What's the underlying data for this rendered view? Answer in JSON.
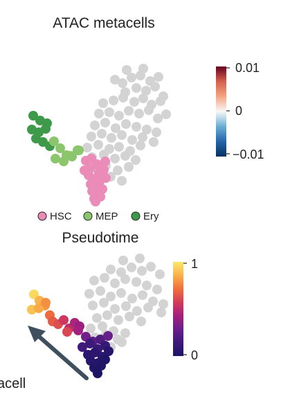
{
  "colors": {
    "hsc": "#ea8bb8",
    "mep": "#8bc66c",
    "ery": "#3d9a4a",
    "other": "#d3d3d3",
    "arrow": "#3e4f5e"
  },
  "chart_data": [
    {
      "type": "scatter",
      "title": "ATAC metacells",
      "colorbar": {
        "colors": [
          "#053061",
          "#2166ac",
          "#6aaed6",
          "#f7f7f7",
          "#f4a582",
          "#d6604d",
          "#67001f"
        ],
        "ticks": [
          "0.01",
          "0",
          "−0.01"
        ],
        "range": [
          -0.01,
          0.01
        ]
      },
      "legend": {
        "placement": "bottom",
        "entries": [
          {
            "label": "HSC",
            "color": "#ea8bb8"
          },
          {
            "label": "MEP",
            "color": "#8bc66c"
          },
          {
            "label": "Ery",
            "color": "#3d9a4a"
          }
        ]
      },
      "x": [
        183,
        207,
        166,
        177,
        190,
        203,
        217,
        229,
        181,
        197,
        211,
        224,
        236,
        149,
        164,
        178,
        194,
        207,
        219,
        232,
        143,
        158,
        172,
        186,
        201,
        215,
        228,
        240,
        137,
        152,
        167,
        182,
        197,
        212,
        226,
        132,
        147,
        161,
        176,
        191,
        206,
        222,
        126,
        142,
        158,
        172,
        188,
        203,
        133,
        150,
        166,
        181,
        196,
        136,
        153,
        170,
        186,
        142,
        160,
        176,
        124,
        132,
        140,
        152,
        122,
        130,
        143,
        150,
        128,
        137,
        144,
        153,
        131,
        140,
        148,
        133,
        142,
        136,
        145,
        138,
        48,
        58,
        68,
        46,
        56,
        66,
        52,
        62,
        72,
        78,
        87,
        96,
        104,
        114,
        80,
        92,
        102,
        112
      ],
      "y": [
        101,
        99,
        115,
        120,
        112,
        109,
        117,
        111,
        133,
        127,
        131,
        125,
        139,
        149,
        145,
        141,
        147,
        142,
        151,
        146,
        164,
        162,
        167,
        160,
        164,
        159,
        171,
        165,
        181,
        177,
        185,
        179,
        183,
        187,
        191,
        197,
        193,
        199,
        195,
        202,
        198,
        205,
        213,
        209,
        215,
        212,
        218,
        210,
        227,
        223,
        229,
        225,
        231,
        243,
        239,
        246,
        241,
        257,
        255,
        261,
        232,
        229,
        237,
        233,
        246,
        243,
        249,
        245,
        253,
        258,
        262,
        257,
        266,
        269,
        273,
        276,
        281,
        287,
        284,
        291,
        167,
        174,
        178,
        187,
        191,
        186,
        200,
        205,
        211,
        204,
        214,
        224,
        226,
        217,
        229,
        233,
        225,
        217
      ],
      "group": [
        "other",
        "other",
        "other",
        "other",
        "other",
        "other",
        "other",
        "other",
        "other",
        "other",
        "other",
        "other",
        "other",
        "other",
        "other",
        "other",
        "other",
        "other",
        "other",
        "other",
        "other",
        "other",
        "other",
        "other",
        "other",
        "other",
        "other",
        "other",
        "other",
        "other",
        "other",
        "other",
        "other",
        "other",
        "other",
        "other",
        "other",
        "other",
        "other",
        "other",
        "other",
        "other",
        "other",
        "other",
        "other",
        "other",
        "other",
        "other",
        "other",
        "other",
        "other",
        "other",
        "other",
        "other",
        "other",
        "other",
        "other",
        "other",
        "other",
        "other",
        "HSC",
        "HSC",
        "HSC",
        "HSC",
        "HSC",
        "HSC",
        "HSC",
        "HSC",
        "HSC",
        "HSC",
        "HSC",
        "HSC",
        "HSC",
        "HSC",
        "HSC",
        "HSC",
        "HSC",
        "HSC",
        "HSC",
        "HSC",
        "Ery",
        "Ery",
        "Ery",
        "Ery",
        "Ery",
        "Ery",
        "Ery",
        "Ery",
        "Ery",
        "MEP",
        "MEP",
        "MEP",
        "MEP",
        "MEP",
        "MEP",
        "MEP",
        "MEP",
        "MEP"
      ]
    },
    {
      "type": "scatter",
      "title": "Pseudotime",
      "colorbar": {
        "colors": [
          "#1b1464",
          "#3d1a7a",
          "#6b1f8a",
          "#a5207e",
          "#d33c5a",
          "#f0703a",
          "#f9b24a",
          "#f8e96a"
        ],
        "ticks": [
          "1",
          "0"
        ],
        "range": [
          0,
          1
        ]
      },
      "annotation": "acell",
      "x": [
        178,
        202,
        160,
        175,
        190,
        205,
        218,
        231,
        136,
        151,
        166,
        181,
        197,
        212,
        227,
        129,
        145,
        160,
        175,
        191,
        206,
        221,
        236,
        134,
        150,
        166,
        182,
        198,
        214,
        233,
        140,
        155,
        171,
        187,
        204,
        131,
        148,
        164,
        181,
        137,
        153,
        170,
        143,
        160,
        176,
        49,
        57,
        65,
        46,
        56,
        66,
        72,
        76,
        84,
        92,
        100,
        108,
        115,
        97,
        113,
        124,
        134,
        145,
        156,
        119,
        130,
        141,
        152,
        127,
        137,
        148,
        157,
        131,
        142,
        152,
        136,
        146,
        141
      ],
      "y": [
        376,
        373,
        389,
        393,
        386,
        391,
        385,
        396,
        405,
        401,
        409,
        403,
        407,
        412,
        418,
        424,
        420,
        428,
        423,
        431,
        426,
        435,
        439,
        441,
        437,
        446,
        442,
        449,
        444,
        451,
        459,
        455,
        462,
        457,
        464,
        474,
        471,
        478,
        481,
        487,
        483,
        490,
        497,
        501,
        494,
        425,
        434,
        441,
        447,
        445,
        437,
        455,
        464,
        468,
        462,
        474,
        466,
        471,
        479,
        477,
        486,
        493,
        490,
        485,
        501,
        496,
        504,
        499,
        512,
        509,
        515,
        507,
        521,
        524,
        519,
        531,
        528,
        539
      ],
      "value": [
        null,
        null,
        null,
        null,
        null,
        null,
        null,
        null,
        null,
        null,
        null,
        null,
        null,
        null,
        null,
        null,
        null,
        null,
        null,
        null,
        null,
        null,
        null,
        null,
        null,
        null,
        null,
        null,
        null,
        null,
        null,
        null,
        null,
        null,
        null,
        null,
        null,
        null,
        null,
        null,
        null,
        null,
        null,
        null,
        null,
        0.96,
        0.86,
        0.8,
        0.9,
        0.84,
        0.78,
        0.7,
        0.66,
        0.62,
        0.55,
        0.5,
        0.45,
        0.4,
        0.6,
        0.42,
        0.3,
        0.24,
        0.2,
        0.27,
        0.15,
        0.14,
        0.12,
        0.11,
        0.08,
        0.07,
        0.06,
        0.05,
        0.05,
        0.04,
        0.03,
        0.02,
        0.02,
        0.01
      ]
    }
  ]
}
